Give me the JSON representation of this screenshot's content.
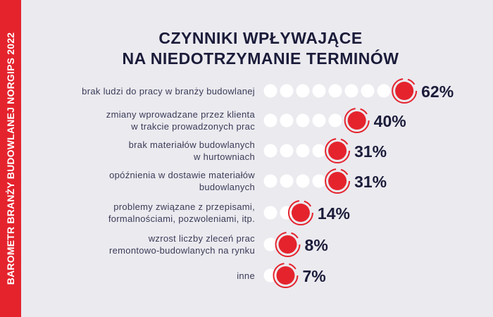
{
  "side_label": "BAROMETR BRANŻY BUDOWLANEJ NORGIPS 2022",
  "title_lines": [
    "CZYNNIKI WPŁYWAJĄCE",
    "NA NIEDOTRZYMANIE TERMINÓW"
  ],
  "colors": {
    "accent": "#e4232d",
    "dark_text": "#1b1c3a",
    "dot": "#ffffff",
    "background": "#ebeaef"
  },
  "chart_data": {
    "type": "bar",
    "unit": "%",
    "categories": [
      [
        "brak ludzi do pracy w branży budowlanej"
      ],
      [
        "zmiany wprowadzane przez klienta",
        "w trakcie prowadzonych prac"
      ],
      [
        "brak materiałów budowlanych",
        "w hurtowniach"
      ],
      [
        "opóźnienia w dostawie materiałów",
        "budowlanych"
      ],
      [
        "problemy związane z przepisami,",
        "formalnościami, pozwoleniami, itp."
      ],
      [
        "wzrost liczby zleceń prac",
        "remontowo-budowlanych na rynku"
      ],
      [
        "inne"
      ]
    ],
    "values": [
      62,
      40,
      31,
      31,
      14,
      8,
      7
    ],
    "value_labels": [
      "62%",
      "40%",
      "31%",
      "31%",
      "14%",
      "8%",
      "7%"
    ]
  }
}
